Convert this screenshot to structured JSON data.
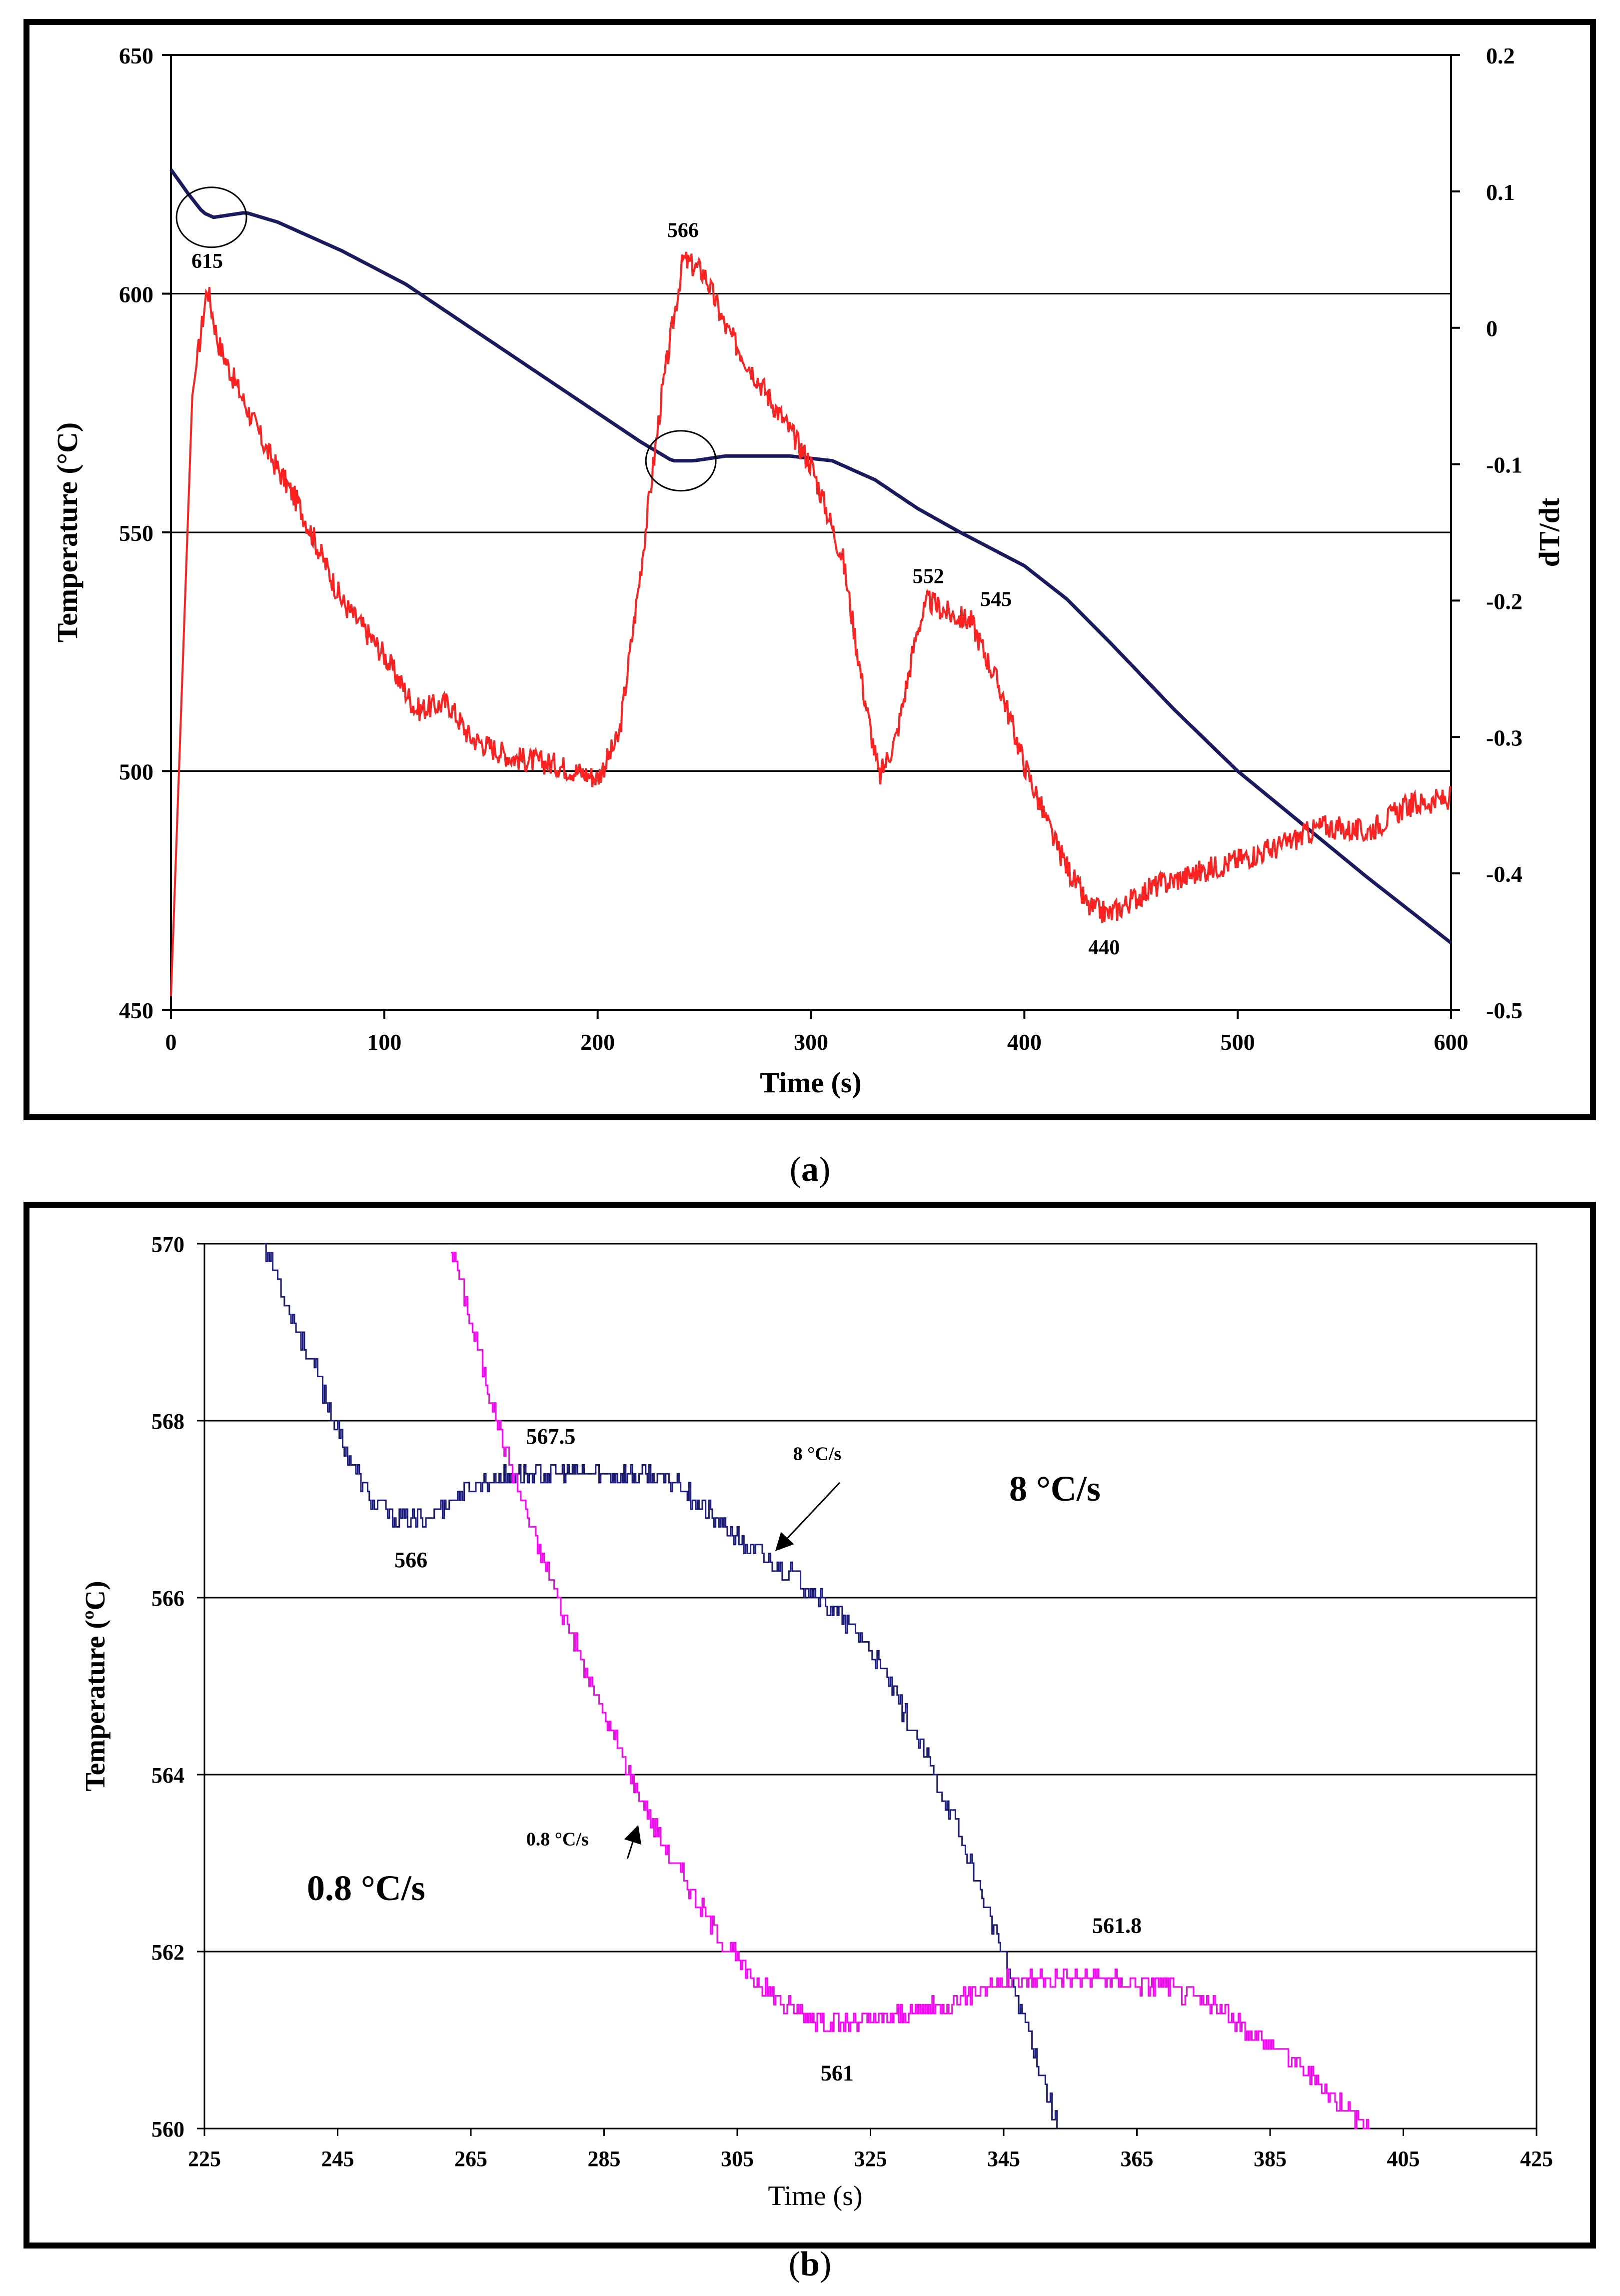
{
  "chart_data": [
    {
      "panel": "a",
      "type": "line",
      "title": "",
      "xlabel": "Time (s)",
      "ylabel": "Temperature (°C)",
      "y2label": "dT/dt",
      "xlim": [
        0,
        600
      ],
      "ylim": [
        450,
        650
      ],
      "y2lim": [
        -0.5,
        0.2
      ],
      "xticks": [
        0,
        100,
        200,
        300,
        400,
        500,
        600
      ],
      "yticks": [
        450,
        500,
        550,
        600,
        650
      ],
      "y2ticks": [
        "-0.5",
        "-0.4",
        "-0.3",
        "-0.2",
        "-0.1",
        "0",
        "0.1",
        "0.2"
      ],
      "gridlines_y": [
        500,
        550,
        600
      ],
      "series": [
        {
          "name": "Temperature",
          "axis": "left",
          "color": "#1a1a5e",
          "points": [
            [
              0,
              626
            ],
            [
              8,
              621
            ],
            [
              15,
              617
            ],
            [
              20,
              616
            ],
            [
              35,
              617
            ],
            [
              50,
              615
            ],
            [
              80,
              609
            ],
            [
              110,
              602
            ],
            [
              150,
              590
            ],
            [
              200,
              575
            ],
            [
              220,
              569
            ],
            [
              235,
              565
            ],
            [
              245,
              565
            ],
            [
              260,
              566
            ],
            [
              290,
              566
            ],
            [
              310,
              565
            ],
            [
              330,
              561
            ],
            [
              350,
              555
            ],
            [
              370,
              550
            ],
            [
              400,
              543
            ],
            [
              420,
              536
            ],
            [
              440,
              527
            ],
            [
              470,
              513
            ],
            [
              500,
              500
            ],
            [
              530,
              489
            ],
            [
              560,
              478
            ],
            [
              600,
              464
            ]
          ]
        },
        {
          "name": "dT/dt",
          "axis": "right",
          "color": "#ff2020",
          "points": [
            [
              0,
              -0.49
            ],
            [
              10,
              -0.05
            ],
            [
              17,
              0.03
            ],
            [
              22,
              -0.01
            ],
            [
              30,
              -0.04
            ],
            [
              45,
              -0.09
            ],
            [
              60,
              -0.13
            ],
            [
              80,
              -0.2
            ],
            [
              100,
              -0.24
            ],
            [
              115,
              -0.28
            ],
            [
              130,
              -0.275
            ],
            [
              140,
              -0.3
            ],
            [
              160,
              -0.315
            ],
            [
              180,
              -0.32
            ],
            [
              200,
              -0.33
            ],
            [
              210,
              -0.3
            ],
            [
              220,
              -0.18
            ],
            [
              230,
              -0.05
            ],
            [
              240,
              0.05
            ],
            [
              250,
              0.04
            ],
            [
              260,
              0.0
            ],
            [
              280,
              -0.05
            ],
            [
              300,
              -0.1
            ],
            [
              315,
              -0.17
            ],
            [
              325,
              -0.27
            ],
            [
              332,
              -0.33
            ],
            [
              340,
              -0.3
            ],
            [
              350,
              -0.22
            ],
            [
              355,
              -0.2
            ],
            [
              365,
              -0.21
            ],
            [
              375,
              -0.215
            ],
            [
              390,
              -0.27
            ],
            [
              400,
              -0.32
            ],
            [
              415,
              -0.38
            ],
            [
              430,
              -0.425
            ],
            [
              440,
              -0.43
            ],
            [
              460,
              -0.41
            ],
            [
              480,
              -0.4
            ],
            [
              500,
              -0.39
            ],
            [
              520,
              -0.38
            ],
            [
              540,
              -0.365
            ],
            [
              560,
              -0.37
            ],
            [
              580,
              -0.35
            ],
            [
              600,
              -0.345
            ]
          ]
        }
      ],
      "annotations": [
        {
          "label": "615",
          "x": 17,
          "y2": 0.03
        },
        {
          "label": "566",
          "x": 240,
          "y2": 0.05
        },
        {
          "label": "552",
          "x": 355,
          "y2": -0.2
        },
        {
          "label": "545",
          "x": 375,
          "y2": -0.215
        },
        {
          "label": "440",
          "x": 435,
          "y2": -0.43
        }
      ],
      "circles": [
        {
          "x": 19,
          "y": 616
        },
        {
          "x": 239,
          "y": 565
        }
      ],
      "caption": "a"
    },
    {
      "panel": "b",
      "type": "line",
      "title": "",
      "xlabel": "Time (s)",
      "ylabel": "Temperature (ºC)",
      "xlim": [
        225,
        425
      ],
      "ylim": [
        560,
        570
      ],
      "xticks": [
        225,
        245,
        265,
        285,
        305,
        325,
        345,
        365,
        385,
        405,
        425
      ],
      "yticks": [
        560,
        562,
        564,
        566,
        568,
        570
      ],
      "gridlines_y": [
        562,
        564,
        566,
        568
      ],
      "series": [
        {
          "name": "8 °C/s",
          "color": "#1a1a7a",
          "points": [
            [
              234,
              570
            ],
            [
              238,
              569.2
            ],
            [
              242,
              568.5
            ],
            [
              246,
              567.7
            ],
            [
              250,
              567.1
            ],
            [
              254,
              566.9
            ],
            [
              258,
              566.9
            ],
            [
              262,
              567.1
            ],
            [
              266,
              567.3
            ],
            [
              272,
              567.4
            ],
            [
              280,
              567.4
            ],
            [
              290,
              567.4
            ],
            [
              296,
              567.3
            ],
            [
              300,
              567.0
            ],
            [
              306,
              566.6
            ],
            [
              312,
              566.3
            ],
            [
              316,
              566.1
            ],
            [
              320,
              565.8
            ],
            [
              324,
              565.5
            ],
            [
              328,
              565.0
            ],
            [
              334,
              564.1
            ],
            [
              338,
              563.4
            ],
            [
              342,
              562.6
            ],
            [
              346,
              561.7
            ],
            [
              350,
              560.8
            ],
            [
              353,
              560
            ]
          ]
        },
        {
          "name": "0.8 °C/s",
          "color": "#ff00ff",
          "points": [
            [
              262,
              570
            ],
            [
              266,
              568.8
            ],
            [
              270,
              567.7
            ],
            [
              274,
              566.8
            ],
            [
              278,
              566.0
            ],
            [
              282,
              565.2
            ],
            [
              286,
              564.5
            ],
            [
              290,
              563.8
            ],
            [
              294,
              563.2
            ],
            [
              298,
              562.7
            ],
            [
              302,
              562.2
            ],
            [
              306,
              561.8
            ],
            [
              312,
              561.4
            ],
            [
              318,
              561.2
            ],
            [
              324,
              561.2
            ],
            [
              330,
              561.3
            ],
            [
              336,
              561.4
            ],
            [
              342,
              561.6
            ],
            [
              350,
              561.7
            ],
            [
              360,
              561.7
            ],
            [
              370,
              561.6
            ],
            [
              376,
              561.4
            ],
            [
              382,
              561.1
            ],
            [
              388,
              560.8
            ],
            [
              394,
              560.4
            ],
            [
              400,
              560
            ]
          ]
        }
      ],
      "annotations": [
        {
          "label": "567.5",
          "x": 277,
          "y": 567.6
        },
        {
          "label": "566",
          "x": 256,
          "y": 566.6
        },
        {
          "label": "8 °C/s",
          "x": 317,
          "y": 567.5
        },
        {
          "label": "0.8 °C/s",
          "x": 278,
          "y": 563.2
        },
        {
          "label": "561.8",
          "x": 362,
          "y": 562.1
        },
        {
          "label": "561",
          "x": 320,
          "y": 560.8
        }
      ],
      "big_labels": [
        "8 °C/s",
        "0.8 °C/s"
      ],
      "caption": "b"
    }
  ]
}
